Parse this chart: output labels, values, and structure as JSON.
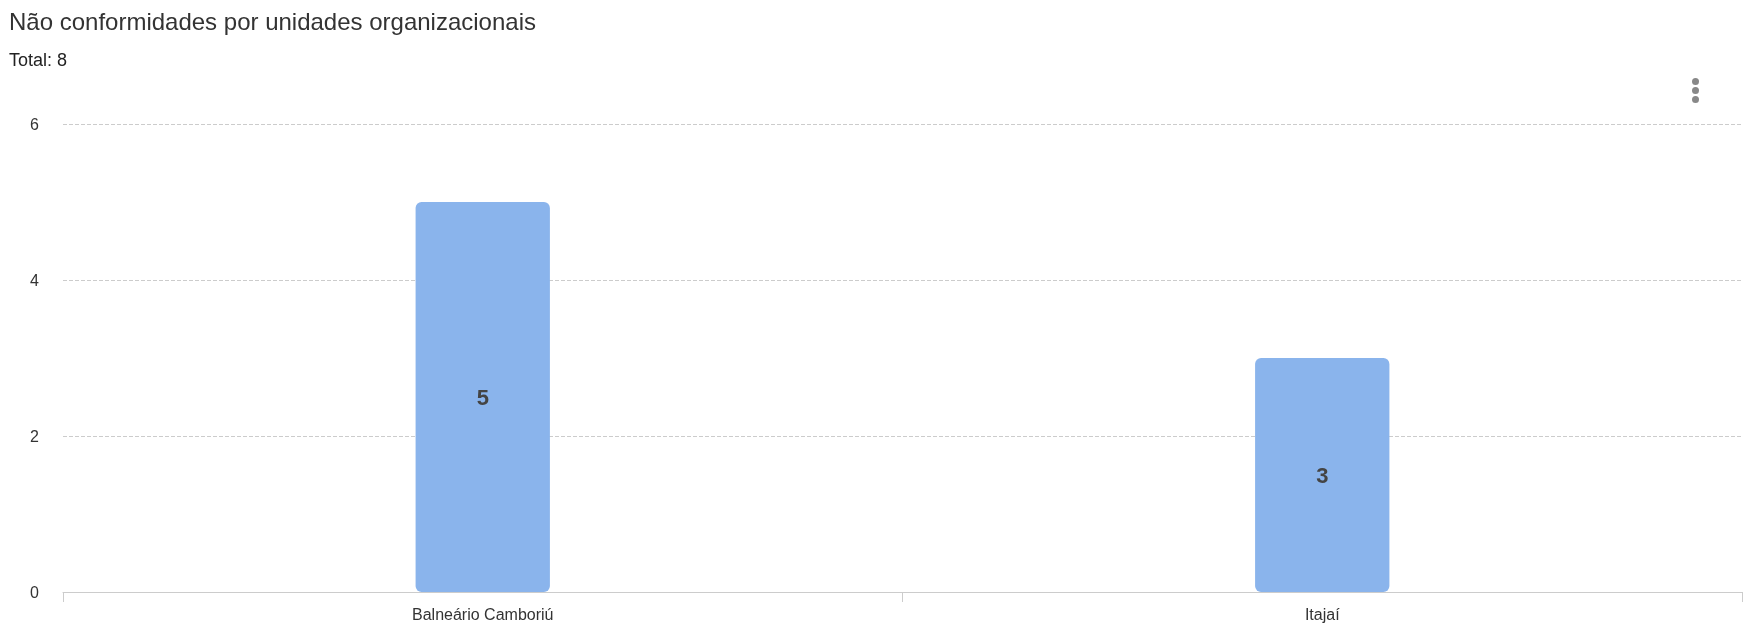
{
  "chart_data": {
    "type": "bar",
    "title": "Não conformidades por unidades organizacionais",
    "subtitle": "Total: 8",
    "categories": [
      "Balneário Camboriú",
      "Itajaí"
    ],
    "values": [
      5,
      3
    ],
    "color": "#8ab4ec",
    "ylim": [
      0,
      6
    ],
    "yticks": [
      0,
      2,
      4,
      6
    ],
    "grid": "y",
    "data_labels": true
  }
}
